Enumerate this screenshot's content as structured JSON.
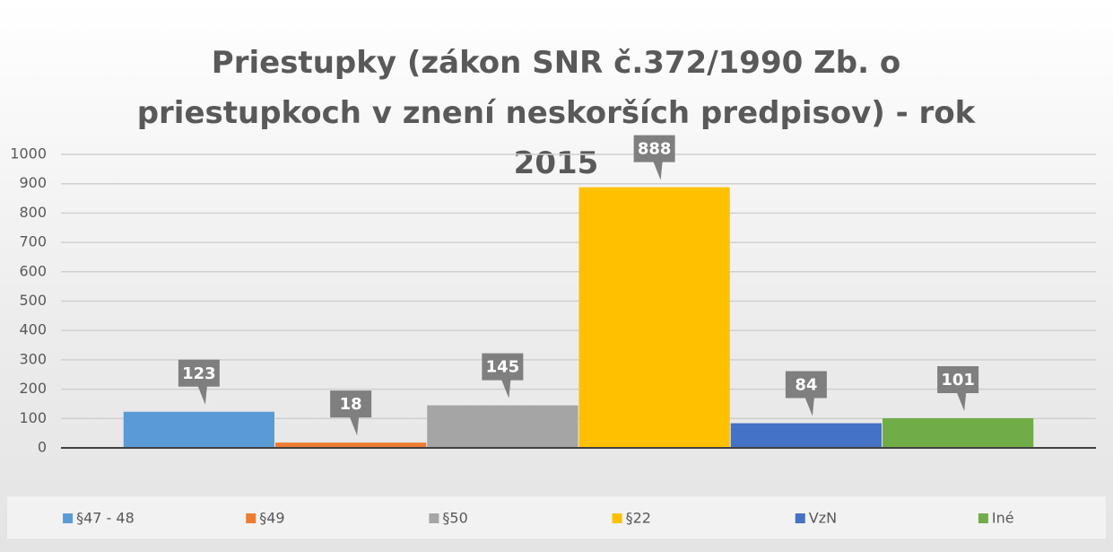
{
  "chart_data": {
    "type": "bar",
    "title": "Priestupky (zákon SNR č.372/1990 Zb. o priestupkoch v znení neskorších predpisov) - rok 2015",
    "categories": [
      null
    ],
    "series": [
      {
        "name": "§47 - 48",
        "color": "#5b9bd5",
        "values": [
          123
        ]
      },
      {
        "name": "§49",
        "color": "#ed7d31",
        "values": [
          18
        ]
      },
      {
        "name": "§50",
        "color": "#a5a5a5",
        "values": [
          145
        ]
      },
      {
        "name": "§22",
        "color": "#ffc000",
        "values": [
          888
        ]
      },
      {
        "name": "VzN",
        "color": "#4472c4",
        "values": [
          84
        ]
      },
      {
        "name": "Iné",
        "color": "#70ad47",
        "values": [
          101
        ]
      }
    ],
    "ylim": [
      0,
      1000
    ],
    "yticks": [
      0,
      100,
      200,
      300,
      400,
      500,
      600,
      700,
      800,
      900,
      1000
    ],
    "grid": true,
    "legend": "bottom"
  }
}
